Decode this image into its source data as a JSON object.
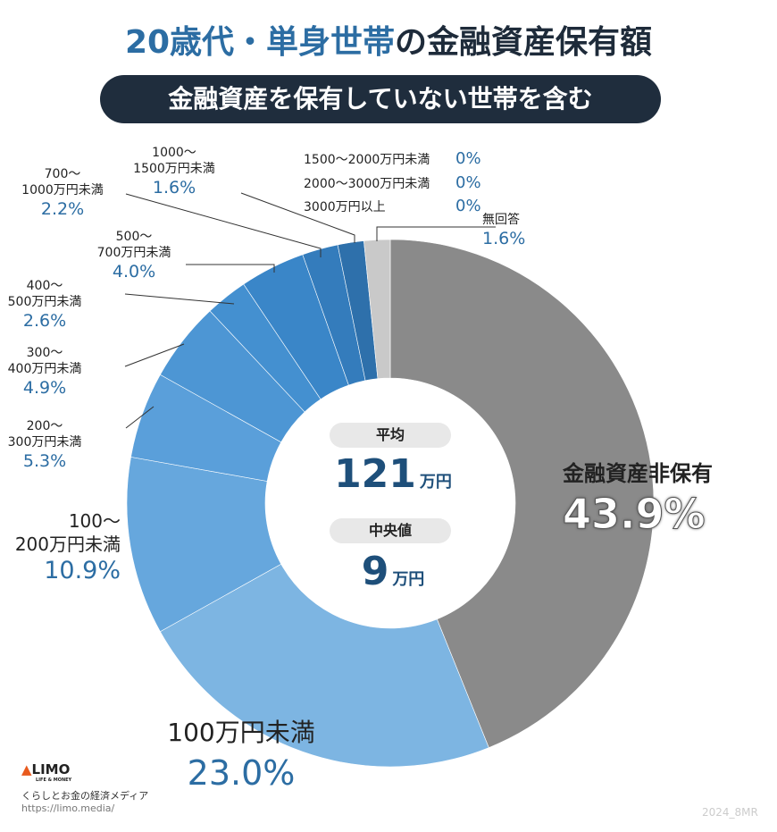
{
  "title_part1": "20歳代・単身世帯",
  "title_part2": "の金融資産保有額",
  "subtitle": "金融資産を保有していない世帯を含む",
  "center": {
    "avg_label": "平均",
    "avg_value": "121",
    "avg_unit": "万円",
    "median_label": "中央値",
    "median_value": "9",
    "median_unit": "万円"
  },
  "chart_data": {
    "type": "pie",
    "title": "20歳代・単身世帯の金融資産保有額",
    "categories": [
      "金融資産非保有",
      "100万円未満",
      "100〜200万円未満",
      "200〜300万円未満",
      "300〜400万円未満",
      "400〜500万円未満",
      "500〜700万円未満",
      "700〜1000万円未満",
      "1000〜1500万円未満",
      "1500〜2000万円未満",
      "2000〜3000万円未満",
      "3000万円以上",
      "無回答"
    ],
    "values": [
      43.9,
      23.0,
      10.9,
      5.3,
      4.9,
      2.6,
      4.0,
      2.2,
      1.6,
      0,
      0,
      0,
      1.6
    ],
    "colors": [
      "#8a8a8a",
      "#7db5e2",
      "#66a7dd",
      "#5a9fda",
      "#4d96d4",
      "#4490d0",
      "#3a86c8",
      "#347cbc",
      "#2e70ab",
      "#2a6aa2",
      "#2a6aa2",
      "#2a6aa2",
      "#c9c9c9"
    ],
    "labels": [
      {
        "l1": "金融資産非保有",
        "p": "43.9%"
      },
      {
        "l1": "100万円未満",
        "p": "23.0%"
      },
      {
        "l1": "100〜",
        "l2": "200万円未満",
        "p": "10.9%"
      },
      {
        "l1": "200〜",
        "l2": "300万円未満",
        "p": "5.3%"
      },
      {
        "l1": "300〜",
        "l2": "400万円未満",
        "p": "4.9%"
      },
      {
        "l1": "400〜",
        "l2": "500万円未満",
        "p": "2.6%"
      },
      {
        "l1": "500〜",
        "l2": "700万円未満",
        "p": "4.0%"
      },
      {
        "l1": "700〜",
        "l2": "1000万円未満",
        "p": "2.2%"
      },
      {
        "l1": "1000〜",
        "l2": "1500万円未満",
        "p": "1.6%"
      },
      {
        "l1": "1500〜2000万円未満",
        "p": "0%"
      },
      {
        "l1": "2000〜3000万円未満",
        "p": "0%"
      },
      {
        "l1": "3000万円以上",
        "p": "0%"
      },
      {
        "l1": "無回答",
        "p": "1.6%"
      }
    ]
  },
  "footer": {
    "logo": "LIMO",
    "logo_sub": "LIFE & MONEY",
    "tagline": "くらしとお金の経済メディア",
    "url": "https://limo.media/",
    "code": "2024_8MR"
  }
}
